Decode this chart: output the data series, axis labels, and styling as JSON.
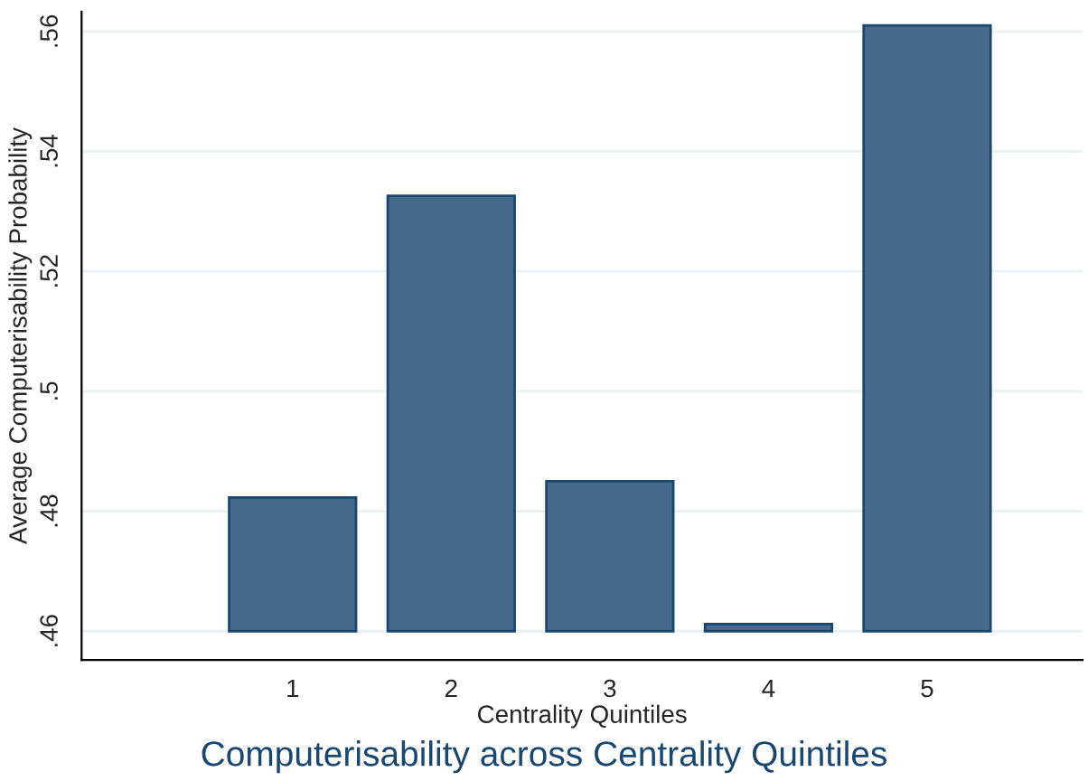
{
  "chart_data": {
    "type": "bar",
    "title": "Computerisability across Centrality Quintiles",
    "xlabel": "Centrality Quintiles",
    "ylabel": "Average Computerisability Probability",
    "categories": [
      "1",
      "2",
      "3",
      "4",
      "5"
    ],
    "base": [
      0.46,
      0.46,
      0.46,
      0.46,
      0.46
    ],
    "values": [
      0.0223,
      0.0726,
      0.025,
      0.0012,
      0.101
    ],
    "color": "#476a8c",
    "ylim": [
      0.4552,
      0.5633
    ],
    "yticks": [
      {
        "value": 0.46,
        "label": ".46"
      },
      {
        "value": 0.48,
        "label": ".48"
      },
      {
        "value": 0.5,
        "label": ".5"
      },
      {
        "value": 0.52,
        "label": ".52"
      },
      {
        "value": 0.54,
        "label": ".54"
      },
      {
        "value": 0.56,
        "label": ".56"
      }
    ],
    "grid": "y",
    "legend": false
  }
}
